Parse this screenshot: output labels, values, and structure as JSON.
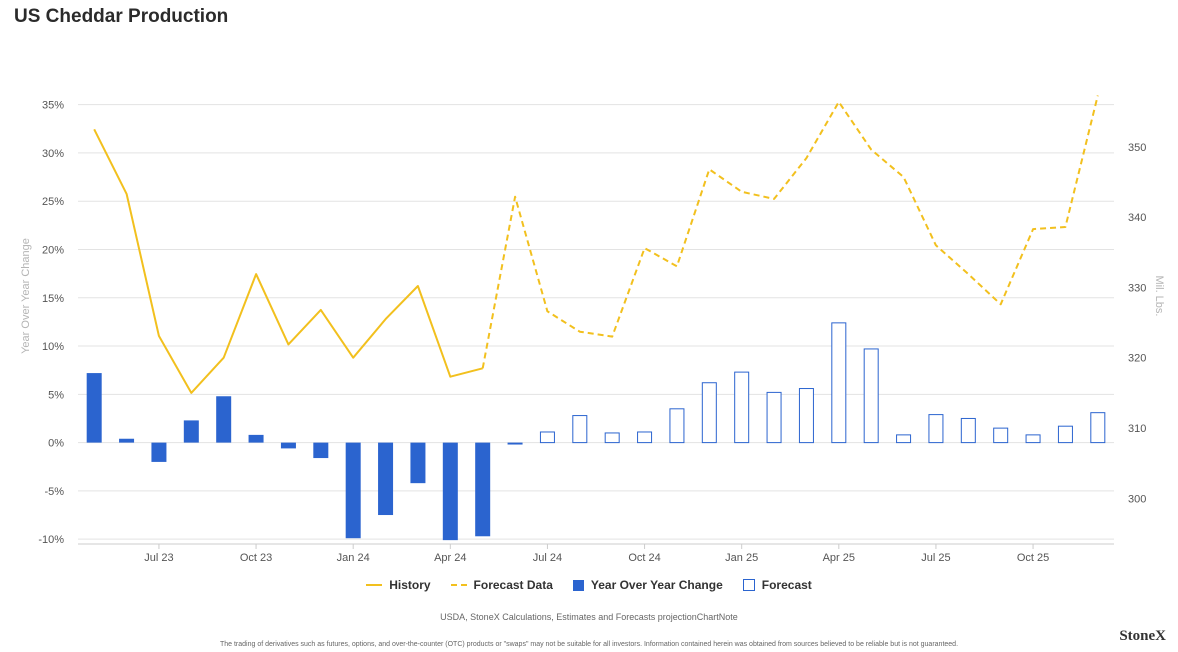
{
  "title": "US Cheddar Production",
  "legend": {
    "history": "History",
    "forecast_data": "Forecast Data",
    "yoy_change": "Year Over Year Change",
    "forecast": "Forecast"
  },
  "source_note": "USDA, StoneX Calculations, Estimates and Forecasts  projectionChartNote",
  "disclaimer": "The trading of derivatives such as futures, options, and over-the-counter (OTC) products or \"swaps\" may not be suitable for all investors. Information contained herein was obtained from sources believed to be reliable but is not guaranteed.",
  "brand": "StoneX",
  "colors": {
    "line": "#F2C01E",
    "bar": "#2B64CF",
    "grid": "#e3e3e3",
    "axis_text": "#555555"
  },
  "chart_data": {
    "type": "bar+line",
    "x": [
      "2023-05",
      "2023-06",
      "2023-07",
      "2023-08",
      "2023-09",
      "2023-10",
      "2023-11",
      "2023-12",
      "2024-01",
      "2024-02",
      "2024-03",
      "2024-04",
      "2024-05",
      "2024-06",
      "2024-07",
      "2024-08",
      "2024-09",
      "2024-10",
      "2024-11",
      "2024-12",
      "2025-01",
      "2025-02",
      "2025-03",
      "2025-04",
      "2025-05",
      "2025-06",
      "2025-07",
      "2025-08",
      "2025-09",
      "2025-10",
      "2025-11",
      "2025-12"
    ],
    "x_tick_labels": [
      "Jul 23",
      "Oct 23",
      "Jan 24",
      "Apr 24",
      "Jul 24",
      "Oct 24",
      "Jan 25",
      "Apr 25",
      "Jul 25",
      "Oct 25"
    ],
    "x_tick_months": [
      "2023-07",
      "2023-10",
      "2024-01",
      "2024-04",
      "2024-07",
      "2024-10",
      "2025-01",
      "2025-04",
      "2025-07",
      "2025-10"
    ],
    "ylabel_left": "Year Over Year Change",
    "ylabel_right": "Mil. Lbs.",
    "ylim_left": [
      -10.5,
      39
    ],
    "ylim_right": [
      293.5,
      361.5
    ],
    "left_ticks": [
      35,
      30,
      25,
      20,
      15,
      10,
      5,
      0,
      -5,
      -10
    ],
    "left_tick_labels": [
      "35%",
      "30%",
      "25%",
      "20%",
      "15%",
      "10%",
      "5%",
      "0%",
      "-5%",
      "-10%"
    ],
    "right_ticks": [
      350,
      340,
      330,
      320,
      310,
      300
    ],
    "right_tick_labels": [
      "350",
      "340",
      "330",
      "320",
      "310",
      "300"
    ],
    "history_end_index": 13,
    "series": [
      {
        "name": "Year Over Year Change",
        "axis": "left",
        "kind": "bar",
        "values": [
          7.2,
          0.4,
          -2.0,
          2.3,
          4.8,
          0.8,
          -0.6,
          -1.6,
          -9.9,
          -7.5,
          -4.2,
          -10.1,
          -9.7,
          -0.2,
          null,
          null,
          null,
          null,
          null,
          null,
          null,
          null,
          null,
          null,
          null,
          null,
          null,
          null,
          null,
          null,
          null,
          null
        ]
      },
      {
        "name": "Forecast",
        "axis": "left",
        "kind": "bar-outline",
        "values": [
          null,
          null,
          null,
          null,
          null,
          null,
          null,
          null,
          null,
          null,
          null,
          null,
          null,
          null,
          1.1,
          2.8,
          1.0,
          1.1,
          3.5,
          6.2,
          7.3,
          5.2,
          5.6,
          12.4,
          9.7,
          0.8,
          2.9,
          2.5,
          1.5,
          0.8,
          1.7,
          3.1
        ]
      },
      {
        "name": "History",
        "axis": "right",
        "kind": "line",
        "values": [
          352.5,
          343.3,
          323.1,
          315.0,
          320.0,
          331.9,
          321.9,
          326.8,
          320.0,
          325.5,
          330.2,
          317.3,
          318.5,
          null,
          null,
          null,
          null,
          null,
          null,
          null,
          null,
          null,
          null,
          null,
          null,
          null,
          null,
          null,
          null,
          null,
          null,
          null
        ]
      },
      {
        "name": "Forecast Data",
        "axis": "right",
        "kind": "dashed-line",
        "values": [
          null,
          null,
          null,
          null,
          null,
          null,
          null,
          null,
          null,
          null,
          null,
          null,
          318.5,
          342.9,
          326.6,
          323.7,
          323.0,
          335.6,
          333.0,
          346.8,
          343.6,
          342.6,
          348.4,
          356.4,
          349.6,
          345.7,
          336.0,
          331.9,
          327.6,
          338.3,
          338.6,
          357.3
        ]
      }
    ],
    "grid": true,
    "legend_position": "bottom"
  }
}
